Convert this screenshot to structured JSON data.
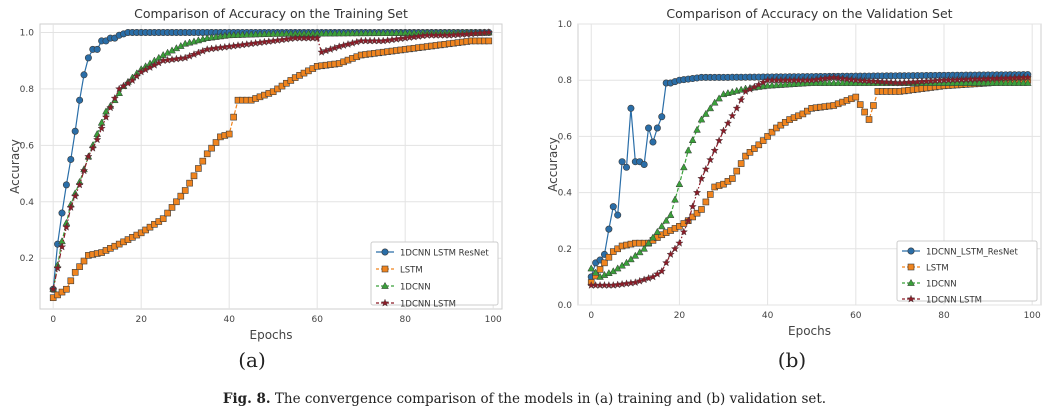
{
  "colors": {
    "1DCNN LSTM ResNet": "#2a6ea8",
    "LSTM": "#f0841e",
    "1DCNN": "#3aa03a",
    "1DCNN LSTM": "#8c1c28"
  },
  "panel_labels": {
    "a": "(a)",
    "b": "(b)"
  },
  "caption": {
    "prefix": "Fig. 8.",
    "text": "The convergence comparison of the models in (a) training and (b) validation set."
  },
  "chart_data": [
    {
      "type": "line",
      "title": "Comparison of Accuracy on the Training Set",
      "xlabel": "Epochs",
      "ylabel": "Accuracy",
      "xlim": [
        -3,
        102
      ],
      "ylim": [
        0.02,
        1.03
      ],
      "xticks": [
        0,
        20,
        40,
        60,
        80,
        100
      ],
      "yticks": [
        0.2,
        0.4,
        0.6,
        0.8,
        1.0
      ],
      "ytick_labels": [
        "0.2",
        "0.4",
        "0.6",
        "0.8",
        "1.0"
      ],
      "grid": true,
      "legend_position": "bottom-right",
      "series": [
        {
          "name": "1DCNN LSTM ResNet",
          "marker": "circle",
          "key": [
            [
              0,
              0.09
            ],
            [
              1,
              0.25
            ],
            [
              2,
              0.36
            ],
            [
              3,
              0.46
            ],
            [
              4,
              0.55
            ],
            [
              5,
              0.65
            ],
            [
              6,
              0.76
            ],
            [
              7,
              0.85
            ],
            [
              8,
              0.91
            ],
            [
              9,
              0.94
            ],
            [
              10,
              0.94
            ],
            [
              11,
              0.97
            ],
            [
              12,
              0.97
            ],
            [
              13,
              0.98
            ],
            [
              14,
              0.98
            ],
            [
              15,
              0.99
            ],
            [
              17,
              1.0
            ],
            [
              100,
              1.0
            ]
          ]
        },
        {
          "name": "LSTM",
          "marker": "square",
          "key": [
            [
              0,
              0.06
            ],
            [
              3,
              0.09
            ],
            [
              5,
              0.15
            ],
            [
              8,
              0.21
            ],
            [
              11,
              0.22
            ],
            [
              15,
              0.25
            ],
            [
              20,
              0.29
            ],
            [
              25,
              0.34
            ],
            [
              30,
              0.44
            ],
            [
              35,
              0.57
            ],
            [
              38,
              0.63
            ],
            [
              40,
              0.64
            ],
            [
              42,
              0.76
            ],
            [
              45,
              0.76
            ],
            [
              50,
              0.79
            ],
            [
              55,
              0.84
            ],
            [
              60,
              0.88
            ],
            [
              65,
              0.89
            ],
            [
              70,
              0.92
            ],
            [
              75,
              0.93
            ],
            [
              80,
              0.94
            ],
            [
              85,
              0.95
            ],
            [
              90,
              0.96
            ],
            [
              95,
              0.97
            ],
            [
              99,
              0.97
            ]
          ]
        },
        {
          "name": "1DCNN",
          "marker": "triangle",
          "key": [
            [
              0,
              0.09
            ],
            [
              2,
              0.26
            ],
            [
              4,
              0.39
            ],
            [
              6,
              0.47
            ],
            [
              8,
              0.56
            ],
            [
              10,
              0.64
            ],
            [
              12,
              0.72
            ],
            [
              14,
              0.76
            ],
            [
              16,
              0.81
            ],
            [
              20,
              0.87
            ],
            [
              25,
              0.92
            ],
            [
              30,
              0.96
            ],
            [
              35,
              0.98
            ],
            [
              40,
              0.99
            ],
            [
              50,
              0.995
            ],
            [
              100,
              1.0
            ]
          ]
        },
        {
          "name": "1DCNN LSTM",
          "marker": "star",
          "key": [
            [
              0,
              0.09
            ],
            [
              2,
              0.24
            ],
            [
              4,
              0.38
            ],
            [
              6,
              0.46
            ],
            [
              8,
              0.56
            ],
            [
              10,
              0.62
            ],
            [
              12,
              0.7
            ],
            [
              15,
              0.8
            ],
            [
              18,
              0.83
            ],
            [
              20,
              0.86
            ],
            [
              25,
              0.9
            ],
            [
              30,
              0.91
            ],
            [
              35,
              0.94
            ],
            [
              40,
              0.95
            ],
            [
              45,
              0.96
            ],
            [
              50,
              0.97
            ],
            [
              55,
              0.98
            ],
            [
              60,
              0.98
            ],
            [
              61,
              0.93
            ],
            [
              65,
              0.95
            ],
            [
              70,
              0.97
            ],
            [
              75,
              0.97
            ],
            [
              80,
              0.98
            ],
            [
              85,
              0.99
            ],
            [
              90,
              0.99
            ],
            [
              95,
              0.995
            ],
            [
              99,
              1.0
            ]
          ]
        }
      ]
    },
    {
      "type": "line",
      "title": "Comparison of Accuracy on the Validation Set",
      "xlabel": "Epochs",
      "ylabel": "Accuracy",
      "xlim": [
        -3,
        102
      ],
      "ylim": [
        0.0,
        1.0
      ],
      "xticks": [
        0,
        20,
        40,
        60,
        80,
        100
      ],
      "yticks": [
        0.0,
        0.2,
        0.4,
        0.6,
        0.8,
        1.0
      ],
      "ytick_labels": [
        "0.0",
        "0.2",
        "0.4",
        "0.6",
        "0.8",
        "1.0"
      ],
      "grid": true,
      "legend_position": "bottom-right",
      "series": [
        {
          "name": "1DCNN_LSTM_ResNet",
          "color_key": "1DCNN LSTM ResNet",
          "marker": "circle",
          "key": [
            [
              0,
              0.1
            ],
            [
              1,
              0.15
            ],
            [
              2,
              0.16
            ],
            [
              3,
              0.18
            ],
            [
              4,
              0.27
            ],
            [
              5,
              0.35
            ],
            [
              6,
              0.32
            ],
            [
              7,
              0.51
            ],
            [
              8,
              0.49
            ],
            [
              9,
              0.7
            ],
            [
              10,
              0.51
            ],
            [
              11,
              0.51
            ],
            [
              12,
              0.5
            ],
            [
              13,
              0.63
            ],
            [
              14,
              0.58
            ],
            [
              15,
              0.63
            ],
            [
              16,
              0.67
            ],
            [
              17,
              0.79
            ],
            [
              18,
              0.79
            ],
            [
              20,
              0.8
            ],
            [
              25,
              0.81
            ],
            [
              30,
              0.81
            ],
            [
              100,
              0.82
            ]
          ]
        },
        {
          "name": "LSTM",
          "color_key": "LSTM",
          "marker": "square",
          "key": [
            [
              0,
              0.08
            ],
            [
              3,
              0.15
            ],
            [
              5,
              0.19
            ],
            [
              7,
              0.21
            ],
            [
              10,
              0.22
            ],
            [
              13,
              0.22
            ],
            [
              16,
              0.25
            ],
            [
              20,
              0.28
            ],
            [
              22,
              0.3
            ],
            [
              25,
              0.34
            ],
            [
              28,
              0.42
            ],
            [
              30,
              0.43
            ],
            [
              32,
              0.45
            ],
            [
              35,
              0.53
            ],
            [
              38,
              0.57
            ],
            [
              40,
              0.6
            ],
            [
              42,
              0.63
            ],
            [
              45,
              0.66
            ],
            [
              48,
              0.68
            ],
            [
              50,
              0.7
            ],
            [
              55,
              0.71
            ],
            [
              60,
              0.74
            ],
            [
              63,
              0.66
            ],
            [
              65,
              0.76
            ],
            [
              70,
              0.76
            ],
            [
              80,
              0.78
            ],
            [
              90,
              0.79
            ],
            [
              99,
              0.8
            ]
          ]
        },
        {
          "name": "1DCNN",
          "color_key": "1DCNN",
          "marker": "triangle",
          "key": [
            [
              0,
              0.13
            ],
            [
              2,
              0.1
            ],
            [
              5,
              0.12
            ],
            [
              8,
              0.15
            ],
            [
              12,
              0.2
            ],
            [
              15,
              0.26
            ],
            [
              18,
              0.32
            ],
            [
              20,
              0.43
            ],
            [
              22,
              0.55
            ],
            [
              25,
              0.66
            ],
            [
              28,
              0.72
            ],
            [
              30,
              0.75
            ],
            [
              35,
              0.77
            ],
            [
              40,
              0.78
            ],
            [
              50,
              0.79
            ],
            [
              60,
              0.79
            ],
            [
              80,
              0.79
            ],
            [
              99,
              0.79
            ]
          ]
        },
        {
          "name": "1DCNN LSTM",
          "color_key": "1DCNN LSTM",
          "marker": "star",
          "key": [
            [
              0,
              0.07
            ],
            [
              5,
              0.07
            ],
            [
              10,
              0.08
            ],
            [
              14,
              0.1
            ],
            [
              16,
              0.12
            ],
            [
              18,
              0.18
            ],
            [
              20,
              0.22
            ],
            [
              22,
              0.3
            ],
            [
              25,
              0.45
            ],
            [
              28,
              0.55
            ],
            [
              30,
              0.62
            ],
            [
              33,
              0.7
            ],
            [
              35,
              0.76
            ],
            [
              40,
              0.8
            ],
            [
              45,
              0.8
            ],
            [
              50,
              0.8
            ],
            [
              55,
              0.81
            ],
            [
              60,
              0.8
            ],
            [
              70,
              0.79
            ],
            [
              80,
              0.8
            ],
            [
              99,
              0.81
            ]
          ]
        }
      ]
    }
  ]
}
